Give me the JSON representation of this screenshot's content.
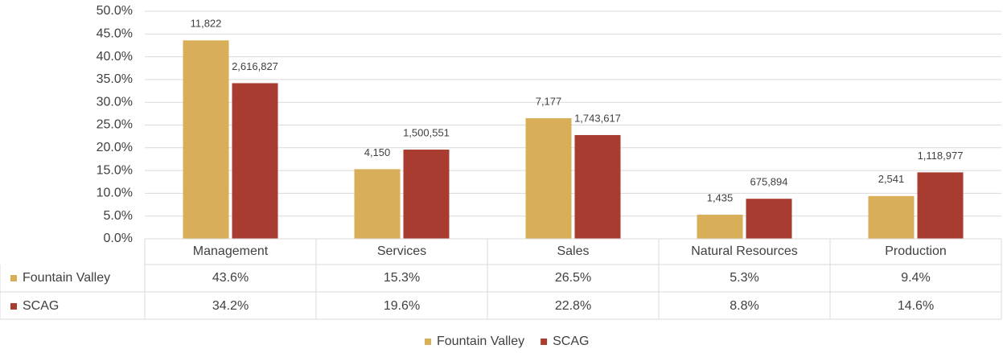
{
  "chart_data": {
    "type": "bar",
    "categories": [
      "Management",
      "Services",
      "Sales",
      "Natural Resources",
      "Production"
    ],
    "series": [
      {
        "name": "Fountain Valley",
        "color": "#d9ae58",
        "values": [
          43.6,
          15.3,
          26.5,
          5.3,
          9.4
        ],
        "value_labels": [
          "43.6%",
          "15.3%",
          "26.5%",
          "5.3%",
          "9.4%"
        ],
        "data_labels": [
          "11,822",
          "4,150",
          "7,177",
          "1,435",
          "2,541"
        ]
      },
      {
        "name": "SCAG",
        "color": "#a93c30",
        "values": [
          34.2,
          19.6,
          22.8,
          8.8,
          14.6
        ],
        "value_labels": [
          "34.2%",
          "19.6%",
          "22.8%",
          "8.8%",
          "14.6%"
        ],
        "data_labels": [
          "2,616,827",
          "1,500,551",
          "1,743,617",
          "675,894",
          "1,118,977"
        ]
      }
    ],
    "ylim": [
      0,
      50
    ],
    "yticks": [
      {
        "value": 0,
        "label": "0.0%"
      },
      {
        "value": 5,
        "label": "5.0%"
      },
      {
        "value": 10,
        "label": "10.0%"
      },
      {
        "value": 15,
        "label": "15.0%"
      },
      {
        "value": 20,
        "label": "20.0%"
      },
      {
        "value": 25,
        "label": "25.0%"
      },
      {
        "value": 30,
        "label": "30.0%"
      },
      {
        "value": 35,
        "label": "35.0%"
      },
      {
        "value": 40,
        "label": "40.0%"
      },
      {
        "value": 45,
        "label": "45.0%"
      },
      {
        "value": 50,
        "label": "50.0%"
      }
    ],
    "grid": true,
    "legend": "bottom",
    "data_table": true
  }
}
